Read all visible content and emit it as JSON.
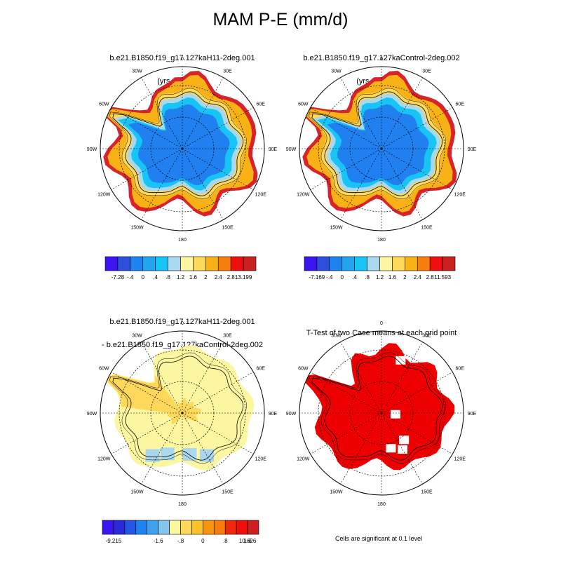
{
  "figure": {
    "title": "MAM P-E (mm/d)"
  },
  "panels": [
    {
      "id": "h11",
      "title_line1": "b.e21.B1850.f19_g17.127kaH11-2deg.001",
      "title_line2": "(yrs 901-1000)"
    },
    {
      "id": "control",
      "title_line1": "b.e21.B1850.f19_g17.127kaControl-2deg.002",
      "title_line2": "(yrs 901-1000)"
    },
    {
      "id": "difference",
      "title_line1": "b.e21.B1850.f19_g17.127kaH11-2deg.001",
      "title_line2": "- b.e21.B1850.f19_g17.127kaControl-2deg.002"
    },
    {
      "id": "ttest",
      "title_line1": "T-Test of two Case means at each grid point",
      "title_line2": ""
    }
  ],
  "longitude_labels": [
    "0",
    "30E",
    "60E",
    "90E",
    "120E",
    "150E",
    "180",
    "150W",
    "120W",
    "90W",
    "60W",
    "30W"
  ],
  "colorbars": {
    "h11": {
      "colors": [
        "#3c14f0",
        "#2a50dc",
        "#1e82f0",
        "#22a5ee",
        "#16c5f5",
        "#a9d8ee",
        "#fdf6a0",
        "#fed85a",
        "#f9b215",
        "#f77e0c",
        "#ee0e0e",
        "#cc2020"
      ],
      "labels": [
        "-7.28",
        "-.4",
        "0",
        ".4",
        ".8",
        "1.2",
        "1.6",
        "2",
        "2.4",
        "2.8",
        "13.199"
      ]
    },
    "control": {
      "colors": [
        "#3c14f0",
        "#2a50dc",
        "#1e82f0",
        "#22a5ee",
        "#16c5f5",
        "#a9d8ee",
        "#fdf6a0",
        "#fed85a",
        "#f9b215",
        "#f77e0c",
        "#ee0e0e",
        "#cc2020"
      ],
      "labels": [
        "-7.169",
        "-.4",
        "0",
        ".4",
        ".8",
        "1.2",
        "1.6",
        "2",
        "2.4",
        "2.8",
        "11.593"
      ]
    },
    "difference": {
      "colors": [
        "#3c14f0",
        "#2a2ad8",
        "#2656e6",
        "#1e82f0",
        "#3ca2ee",
        "#80c6ee",
        "#fdf6a0",
        "#fed85a",
        "#f9c12c",
        "#f99410",
        "#f77e0c",
        "#ee2a0e",
        "#ee0e0e",
        "#cc2020"
      ],
      "labels": [
        "-9.215",
        "-1.6",
        "-.8",
        "0",
        ".8",
        "1.6",
        "10.626"
      ]
    }
  },
  "map_colors": {
    "ocean_ring_red": "#d8232a",
    "orange": "#f9b215",
    "yellow": "#fed85a",
    "pale_yellow": "#fdf6a0",
    "light_blue": "#a9d8ee",
    "sky_blue": "#16c5f5",
    "blue": "#2080f0",
    "significant_red": "#ee0000"
  },
  "ttest_note": "Cells are significant at 0.1 level"
}
